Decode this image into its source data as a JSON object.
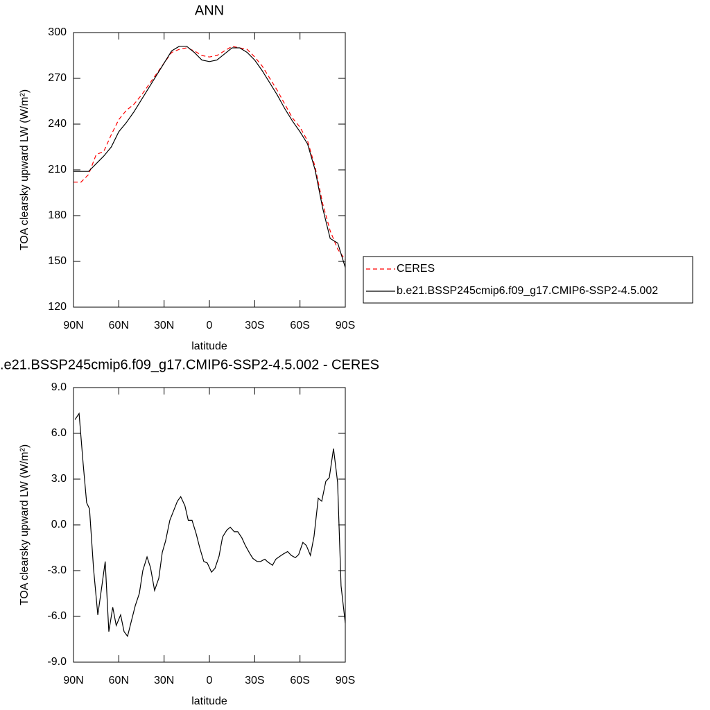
{
  "chart_data": [
    {
      "type": "line",
      "title": "ANN",
      "x_label": "latitude",
      "y_label": "TOA clearsky upward LW (W/m²)",
      "x": [
        90,
        85,
        80,
        75,
        70,
        65,
        60,
        55,
        50,
        45,
        40,
        35,
        30,
        25,
        20,
        15,
        10,
        5,
        0,
        -5,
        -10,
        -15,
        -20,
        -25,
        -30,
        -35,
        -40,
        -45,
        -50,
        -55,
        -60,
        -65,
        -70,
        -75,
        -80,
        -85,
        -90
      ],
      "series": [
        {
          "name": "CERES",
          "color": "#ff0000",
          "line_style": "dashed",
          "values": [
            202,
            202,
            207,
            220,
            222,
            233,
            243,
            249,
            253,
            259,
            266,
            273,
            280,
            287,
            289,
            290,
            288,
            285,
            284,
            285,
            288,
            291,
            290,
            289,
            284,
            278,
            270,
            262,
            253,
            244,
            238,
            229,
            212,
            188,
            170,
            158,
            151
          ]
        },
        {
          "name": "b.e21.BSSP245cmip6.f09_g17.CMIP6-SSP2-4.5.002",
          "color": "#000000",
          "line_style": "solid",
          "values": [
            209,
            209,
            209,
            214,
            219,
            225,
            235,
            241,
            248,
            256,
            264,
            272,
            280,
            288,
            291,
            291,
            287,
            282,
            281,
            282,
            286,
            290,
            290,
            287,
            282,
            275,
            267,
            259,
            250,
            242,
            235,
            227,
            210,
            185,
            165,
            162,
            146
          ]
        }
      ],
      "xlim": [
        90,
        -90
      ],
      "xticks": [
        {
          "value": 90,
          "label": "90N"
        },
        {
          "value": 60,
          "label": "60N"
        },
        {
          "value": 30,
          "label": "30N"
        },
        0,
        {
          "value": -30,
          "label": "30S"
        },
        {
          "value": -60,
          "label": "60S"
        },
        {
          "value": -90,
          "label": "90S"
        }
      ],
      "ylim": [
        120,
        300
      ],
      "yticks": [
        120,
        150,
        180,
        210,
        240,
        270,
        300
      ],
      "legend": "right"
    },
    {
      "type": "line",
      "title": ".e21.BSSP245cmip6.f09_g17.CMIP6-SSP2-4.5.002 - CERES",
      "x_label": "latitude",
      "y_label": "TOA clearsky upward LW (W/m²)",
      "color": "#000000",
      "x": [
        89,
        86.3,
        83.6,
        81.3,
        79.4,
        76.7,
        73.9,
        71.2,
        69,
        66.6,
        64,
        61.7,
        58.8,
        56.5,
        54.2,
        51.4,
        49.1,
        46.4,
        44.1,
        41.3,
        39,
        36.3,
        33.5,
        31.2,
        29,
        26.2,
        24,
        21.2,
        19,
        16.2,
        14,
        11.5,
        8.7,
        6.4,
        3.7,
        1.4,
        -1.4,
        -3.7,
        -6.4,
        -8.7,
        -11.5,
        -13.8,
        -16.5,
        -18.8,
        -21.5,
        -23.8,
        -26.6,
        -28.8,
        -31.6,
        -33.9,
        -36.7,
        -38.9,
        -41.8,
        -44,
        -46.8,
        -49.1,
        -51.8,
        -54.2,
        -56.9,
        -59.1,
        -61.9,
        -64.2,
        -66.9,
        -69.3,
        -72.1,
        -74.4,
        -77.1,
        -79.4,
        -82.2,
        -84.9,
        -87.2,
        -90
      ],
      "values": [
        6.9,
        7.3,
        4.0,
        1.45,
        1.05,
        -2.9,
        -5.9,
        -4.0,
        -2.4,
        -7.0,
        -5.4,
        -6.6,
        -5.9,
        -7.0,
        -7.3,
        -6.2,
        -5.3,
        -4.5,
        -3.0,
        -2.1,
        -2.8,
        -4.3,
        -3.5,
        -1.8,
        -1.05,
        0.3,
        0.85,
        1.55,
        1.85,
        1.25,
        0.3,
        0.3,
        -0.6,
        -1.5,
        -2.4,
        -2.5,
        -3.1,
        -2.85,
        -2.05,
        -0.8,
        -0.35,
        -0.15,
        -0.45,
        -0.45,
        -0.85,
        -1.35,
        -1.85,
        -2.2,
        -2.4,
        -2.4,
        -2.25,
        -2.45,
        -2.65,
        -2.25,
        -2.05,
        -1.9,
        -1.75,
        -2.0,
        -2.15,
        -1.95,
        -1.15,
        -1.35,
        -2.0,
        -0.75,
        1.75,
        1.55,
        2.85,
        3.1,
        5.0,
        2.8,
        -4.0,
        -6.45
      ],
      "xlim": [
        90,
        -90
      ],
      "xticks": [
        {
          "value": 90,
          "label": "90N"
        },
        {
          "value": 60,
          "label": "60N"
        },
        {
          "value": 30,
          "label": "30N"
        },
        0,
        {
          "value": -30,
          "label": "30S"
        },
        {
          "value": -60,
          "label": "60S"
        },
        {
          "value": -90,
          "label": "90S"
        }
      ],
      "ylim": [
        -9,
        9
      ],
      "yticks": [
        {
          "value": -9,
          "label": "-9.0"
        },
        {
          "value": -6,
          "label": "-6.0"
        },
        {
          "value": -3,
          "label": "-3.0"
        },
        {
          "value": 0,
          "label": "0.0"
        },
        {
          "value": 3,
          "label": "3.0"
        },
        {
          "value": 6,
          "label": "6.0"
        },
        {
          "value": 9,
          "label": "9.0"
        }
      ]
    }
  ]
}
